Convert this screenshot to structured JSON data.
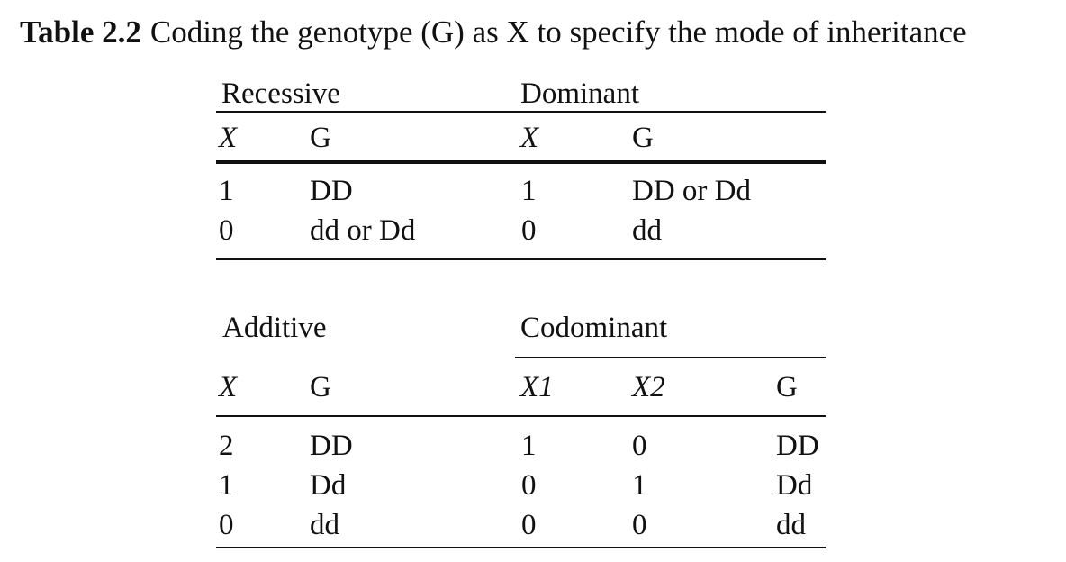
{
  "caption": {
    "label": "Table 2.2",
    "text": "Coding the genotype (G) as X to specify the mode of inheritance"
  },
  "recessive": {
    "title": "Recessive",
    "headers": [
      "X",
      "G"
    ],
    "rows": [
      [
        "1",
        "DD"
      ],
      [
        "0",
        "dd or Dd"
      ]
    ]
  },
  "dominant": {
    "title": "Dominant",
    "headers": [
      "X",
      "G"
    ],
    "rows": [
      [
        "1",
        "DD or Dd"
      ],
      [
        "0",
        "dd"
      ]
    ]
  },
  "additive": {
    "title": "Additive",
    "headers": [
      "X",
      "G"
    ],
    "rows": [
      [
        "2",
        "DD"
      ],
      [
        "1",
        "Dd"
      ],
      [
        "0",
        "dd"
      ]
    ]
  },
  "codominant": {
    "title": "Codominant",
    "headers": [
      "X1",
      "X2",
      "G"
    ],
    "rows": [
      [
        "1",
        "0",
        "DD"
      ],
      [
        "0",
        "1",
        "Dd"
      ],
      [
        "0",
        "0",
        "dd"
      ]
    ]
  }
}
